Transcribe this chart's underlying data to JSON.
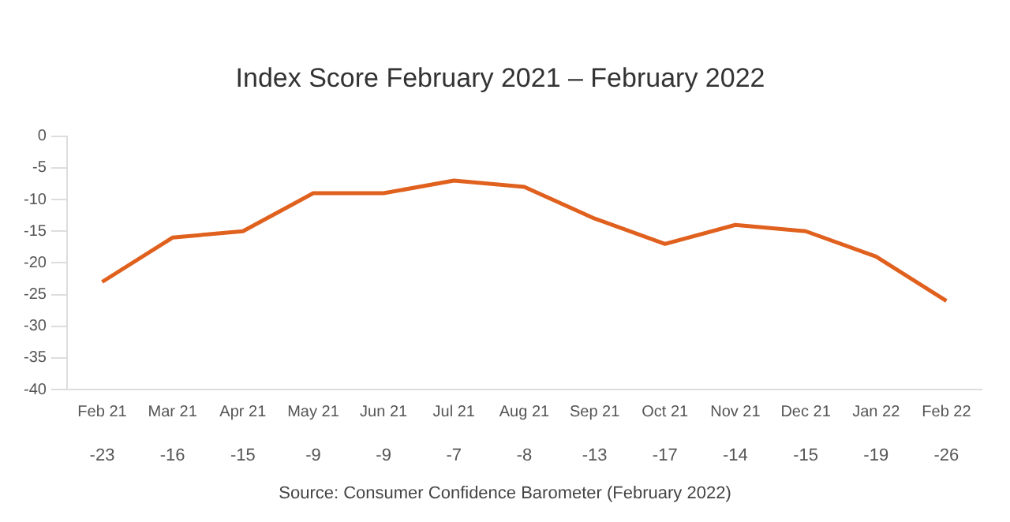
{
  "chart_data": {
    "type": "line",
    "title": "Index Score February 2021 – February 2022",
    "categories": [
      "Feb 21",
      "Mar 21",
      "Apr 21",
      "May 21",
      "Jun 21",
      "Jul 21",
      "Aug 21",
      "Sep 21",
      "Oct 21",
      "Nov 21",
      "Dec 21",
      "Jan 22",
      "Feb 22"
    ],
    "series": [
      {
        "color": "#e0601e",
        "values": [
          -23,
          -16,
          -15,
          -9,
          -9,
          -7,
          -8,
          -13,
          -17,
          -14,
          -15,
          -19,
          -26
        ]
      }
    ],
    "ylim": [
      -40,
      0
    ],
    "yticks": [
      0,
      -5,
      -10,
      -15,
      -20,
      -25,
      -30,
      -35,
      -40
    ],
    "grid": false,
    "legend": false,
    "marker": "none",
    "line_style": "solid",
    "data_labels": true,
    "annotations": [
      "Source: Consumer Confidence Barometer (February 2022)"
    ]
  }
}
